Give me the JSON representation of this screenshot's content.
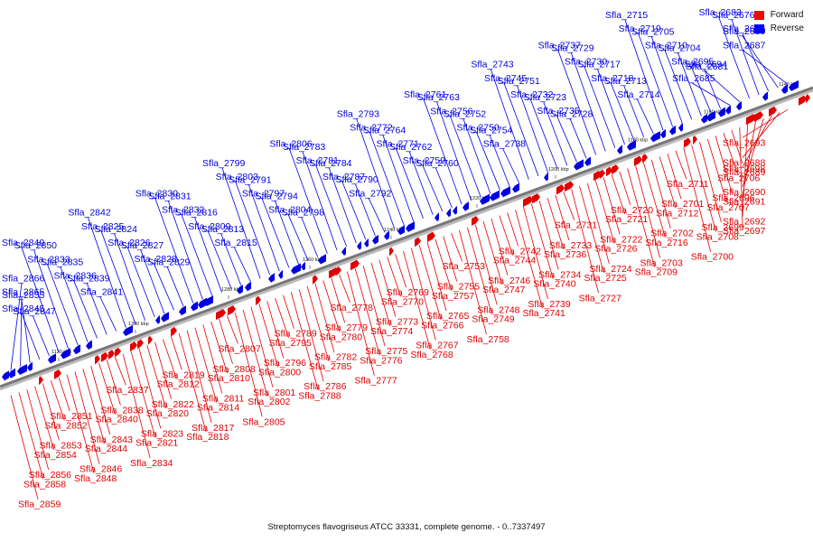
{
  "title": "Streptomyces flavogriseus ATCC 33331, complete genome. - 0..7337497",
  "legend": [
    {
      "label": "Forward",
      "color": "#ff0000"
    },
    {
      "label": "Reverse",
      "color": "#0000ff"
    }
  ],
  "colors": {
    "forward": "#e00000",
    "reverse": "#0000e0",
    "backbone": "#777777"
  },
  "ticks": [
    "1120 kbp",
    "1300 kbp",
    "1280 kbp",
    "1260 kbp",
    "1240 kbp",
    "1220 kbp",
    "1200 kbp",
    "1180 kbp",
    "1160 kbp",
    "1140 kbp"
  ],
  "reverse_genes": [
    "Sfla_2687",
    "Sfla_2680",
    "Sfla_2686",
    "Sfla_2676",
    "Sfla_2683",
    "Sfla_2681",
    "Sfla_2685",
    "Sfla_2694",
    "Sfla_2695",
    "Sfla_2704",
    "Sfla_2710",
    "Sfla_2705",
    "Sfla_2719",
    "Sfla_2715",
    "Sfla_2714",
    "Sfla_2713",
    "Sfla_2718",
    "Sfla_2717",
    "Sfla_2730",
    "Sfla_2729",
    "Sfla_2737",
    "Sfla_2728",
    "Sfla_2735",
    "Sfla_2723",
    "Sfla_2732",
    "Sfla_2751",
    "Sfla_2745",
    "Sfla_2743",
    "Sfla_2738",
    "Sfla_2754",
    "Sfla_2750",
    "Sfla_2752",
    "Sfla_2756",
    "Sfla_2763",
    "Sfla_2761",
    "Sfla_2760",
    "Sfla_2759",
    "Sfla_2762",
    "Sfla_2771",
    "Sfla_2764",
    "Sfla_2772",
    "Sfla_2793",
    "Sfla_2792",
    "Sfla_2790",
    "Sfla_2787",
    "Sfla_2784",
    "Sfla_2781",
    "Sfla_2783",
    "Sfla_2806",
    "Sfla_2798",
    "Sfla_2804",
    "Sfla_2794",
    "Sfla_2797",
    "Sfla_2791",
    "Sfla_2803",
    "Sfla_2799",
    "Sfla_2815",
    "Sfla_2813",
    "Sfla_2809",
    "Sfla_2816",
    "Sfla_2832",
    "Sfla_2831",
    "Sfla_2830",
    "Sfla_2829",
    "Sfla_2828",
    "Sfla_2827",
    "Sfla_2826",
    "Sfla_2824",
    "Sfla_2825",
    "Sfla_2842",
    "Sfla_2841",
    "Sfla_2839",
    "Sfla_2836",
    "Sfla_2835",
    "Sfla_2833",
    "Sfla_2850",
    "Sfla_2849",
    "Sfla_2847",
    "Sfla_2845",
    "Sfla_2855",
    "Sfla_2865",
    "Sfla_2866"
  ],
  "forward_genes": [
    "Sfla_2693",
    "Sfla_2688",
    "Sfla_2689",
    "Sfla_2690",
    "Sfla_2691",
    "Sfla_2692",
    "Sfla_2697",
    "Sfla_2698",
    "Sfla_2706",
    "Sfla_2696",
    "Sfla_2707",
    "Sfla_2699",
    "Sfla_2708",
    "Sfla_2700",
    "Sfla_2711",
    "Sfla_2701",
    "Sfla_2712",
    "Sfla_2702",
    "Sfla_2716",
    "Sfla_2703",
    "Sfla_2709",
    "Sfla_2720",
    "Sfla_2721",
    "Sfla_2722",
    "Sfla_2726",
    "Sfla_2724",
    "Sfla_2725",
    "Sfla_2727",
    "Sfla_2731",
    "Sfla_2733",
    "Sfla_2736",
    "Sfla_2734",
    "Sfla_2740",
    "Sfla_2739",
    "Sfla_2741",
    "Sfla_2742",
    "Sfla_2744",
    "Sfla_2746",
    "Sfla_2747",
    "Sfla_2748",
    "Sfla_2749",
    "Sfla_2758",
    "Sfla_2753",
    "Sfla_2755",
    "Sfla_2757",
    "Sfla_2765",
    "Sfla_2766",
    "Sfla_2767",
    "Sfla_2768",
    "Sfla_2769",
    "Sfla_2770",
    "Sfla_2773",
    "Sfla_2774",
    "Sfla_2775",
    "Sfla_2776",
    "Sfla_2777",
    "Sfla_2778",
    "Sfla_2779",
    "Sfla_2780",
    "Sfla_2782",
    "Sfla_2785",
    "Sfla_2786",
    "Sfla_2788",
    "Sfla_2789",
    "Sfla_2795",
    "Sfla_2796",
    "Sfla_2800",
    "Sfla_2801",
    "Sfla_2802",
    "Sfla_2805",
    "Sfla_2807",
    "Sfla_2808",
    "Sfla_2810",
    "Sfla_2811",
    "Sfla_2814",
    "Sfla_2817",
    "Sfla_2818",
    "Sfla_2819",
    "Sfla_2812",
    "Sfla_2822",
    "Sfla_2820",
    "Sfla_2823",
    "Sfla_2821",
    "Sfla_2834",
    "Sfla_2837",
    "Sfla_2838",
    "Sfla_2840",
    "Sfla_2843",
    "Sfla_2844",
    "Sfla_2846",
    "Sfla_2848",
    "Sfla_2851",
    "Sfla_2852",
    "Sfla_2853",
    "Sfla_2854",
    "Sfla_2856",
    "Sfla_2858",
    "Sfla_2859"
  ]
}
